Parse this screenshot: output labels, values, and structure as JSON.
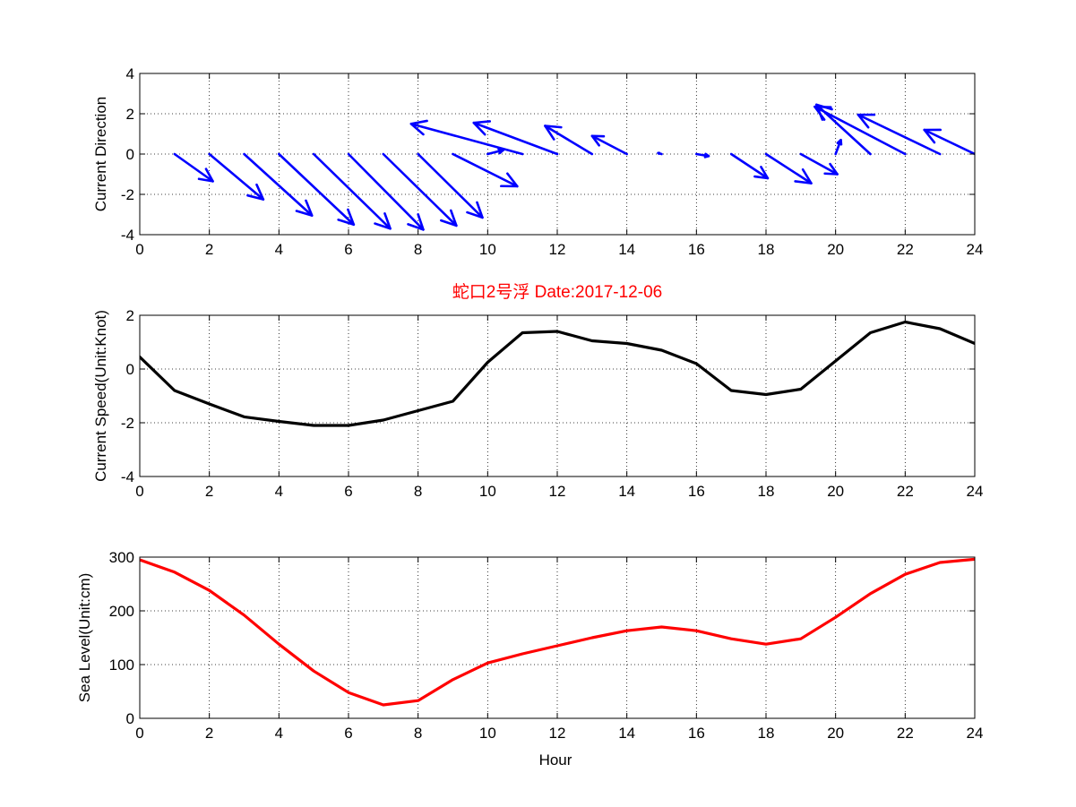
{
  "figure": {
    "title": "蛇口2号浮   Date:2017-12-06",
    "title_color": "#ff0000"
  },
  "chart_data": [
    {
      "type": "quiver",
      "ylabel": "Current Direction",
      "xlabel": "",
      "xlim": [
        0,
        24
      ],
      "ylim": [
        -4,
        4
      ],
      "xticks": [
        0,
        2,
        4,
        6,
        8,
        10,
        12,
        14,
        16,
        18,
        20,
        22,
        24
      ],
      "yticks": [
        -4,
        -2,
        0,
        2,
        4
      ],
      "grid": true,
      "color": "#0000ff",
      "arrows": [
        {
          "x": 1,
          "u": 1.1,
          "v": -1.35
        },
        {
          "x": 2,
          "u": 1.55,
          "v": -2.25
        },
        {
          "x": 3,
          "u": 1.95,
          "v": -3.05
        },
        {
          "x": 4,
          "u": 2.15,
          "v": -3.5
        },
        {
          "x": 5,
          "u": 2.2,
          "v": -3.7
        },
        {
          "x": 6,
          "u": 2.15,
          "v": -3.75
        },
        {
          "x": 7,
          "u": 2.1,
          "v": -3.55
        },
        {
          "x": 8,
          "u": 1.85,
          "v": -3.15
        },
        {
          "x": 9,
          "u": 1.85,
          "v": -1.6
        },
        {
          "x": 10,
          "u": 0.45,
          "v": 0.2
        },
        {
          "x": 11,
          "u": -3.2,
          "v": 1.5
        },
        {
          "x": 12,
          "u": -2.4,
          "v": 1.55
        },
        {
          "x": 13,
          "u": -1.35,
          "v": 1.4
        },
        {
          "x": 14,
          "u": -1.0,
          "v": 0.9
        },
        {
          "x": 15,
          "u": -0.1,
          "v": 0.05
        },
        {
          "x": 16,
          "u": 0.35,
          "v": -0.1
        },
        {
          "x": 17,
          "u": 1.05,
          "v": -1.2
        },
        {
          "x": 18,
          "u": 1.3,
          "v": -1.45
        },
        {
          "x": 19,
          "u": 1.05,
          "v": -1.0
        },
        {
          "x": 20,
          "u": 0.15,
          "v": 0.7
        },
        {
          "x": 21,
          "u": -1.55,
          "v": 2.45
        },
        {
          "x": 22,
          "u": -2.6,
          "v": 2.35
        },
        {
          "x": 23,
          "u": -2.35,
          "v": 1.95
        },
        {
          "x": 24,
          "u": -1.45,
          "v": 1.2
        }
      ]
    },
    {
      "type": "line",
      "title": "蛇口2号浮   Date:2017-12-06",
      "ylabel": "Current Speed(Unit:Knot)",
      "xlabel": "",
      "xlim": [
        0,
        24
      ],
      "ylim": [
        -4,
        2
      ],
      "xticks": [
        0,
        2,
        4,
        6,
        8,
        10,
        12,
        14,
        16,
        18,
        20,
        22,
        24
      ],
      "yticks": [
        -4,
        -2,
        0,
        2
      ],
      "grid": true,
      "color": "#000000",
      "x": [
        0,
        1,
        2,
        3,
        4,
        5,
        6,
        7,
        8,
        9,
        10,
        11,
        12,
        13,
        14,
        15,
        16,
        17,
        18,
        19,
        20,
        21,
        22,
        23,
        24
      ],
      "y": [
        0.45,
        -0.8,
        -1.3,
        -1.78,
        -1.95,
        -2.1,
        -2.1,
        -1.9,
        -1.55,
        -1.2,
        0.25,
        1.35,
        1.4,
        1.05,
        0.95,
        0.7,
        0.2,
        -0.8,
        -0.95,
        -0.75,
        0.3,
        1.35,
        1.75,
        1.5,
        0.95
      ]
    },
    {
      "type": "line",
      "ylabel": "Sea Level(Unit:cm)",
      "xlabel": "Hour",
      "xlim": [
        0,
        24
      ],
      "ylim": [
        0,
        300
      ],
      "xticks": [
        0,
        2,
        4,
        6,
        8,
        10,
        12,
        14,
        16,
        18,
        20,
        22,
        24
      ],
      "yticks": [
        0,
        100,
        200,
        300
      ],
      "grid": true,
      "color": "#ff0000",
      "x": [
        0,
        1,
        2,
        3,
        4,
        5,
        6,
        7,
        8,
        9,
        10,
        11,
        12,
        13,
        14,
        15,
        16,
        17,
        18,
        19,
        20,
        21,
        22,
        23,
        24
      ],
      "y": [
        295,
        272,
        238,
        192,
        138,
        88,
        48,
        25,
        33,
        72,
        103,
        120,
        135,
        150,
        163,
        170,
        163,
        148,
        138,
        148,
        188,
        232,
        268,
        290,
        296
      ]
    }
  ]
}
